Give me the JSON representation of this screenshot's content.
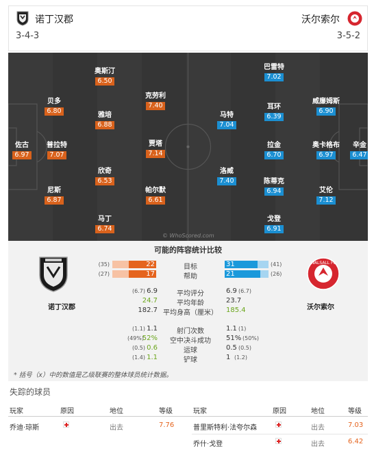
{
  "home": {
    "name": "诺丁汉郡",
    "formation": "3-4-3",
    "color": "#d9621c",
    "logo_text": "NOTTS COUNTY FC"
  },
  "away": {
    "name": "沃尔索尔",
    "formation": "3-5-2",
    "color": "#1b8fd2",
    "logo_text": "WALSALL FC"
  },
  "home_players": [
    {
      "name": "佐古",
      "rating": "6.97"
    },
    {
      "name": "普拉特",
      "rating": "7.07"
    },
    {
      "name": "贝多",
      "rating": "6.80"
    },
    {
      "name": "尼斯",
      "rating": "6.87"
    },
    {
      "name": "奥斯汀",
      "rating": "6.50"
    },
    {
      "name": "雅培",
      "rating": "6.88"
    },
    {
      "name": "欣奇",
      "rating": "6.53"
    },
    {
      "name": "马丁",
      "rating": "6.74"
    },
    {
      "name": "克劳利",
      "rating": "7.40"
    },
    {
      "name": "贾塔",
      "rating": "7.14"
    },
    {
      "name": "帕尔默",
      "rating": "6.61"
    }
  ],
  "away_players": [
    {
      "name": "辛金",
      "rating": "6.47"
    },
    {
      "name": "威廉姆斯",
      "rating": "6.90"
    },
    {
      "name": "奥卡格布",
      "rating": "6.97"
    },
    {
      "name": "艾伦",
      "rating": "7.12"
    },
    {
      "name": "巴雷特",
      "rating": "7.02"
    },
    {
      "name": "耳环",
      "rating": "6.39"
    },
    {
      "name": "拉金",
      "rating": "6.70"
    },
    {
      "name": "陈蒂克",
      "rating": "6.94"
    },
    {
      "name": "戈登",
      "rating": "6.91"
    },
    {
      "name": "马特",
      "rating": "7.04"
    },
    {
      "name": "洛威",
      "rating": "7.40"
    }
  ],
  "watermark": "© WhoScored.com",
  "stats": {
    "title": "可能的阵容统计比较",
    "goals": {
      "label": "目标",
      "home": "22",
      "home_prev": "(35)",
      "away": "31",
      "away_prev": "(41)"
    },
    "assists": {
      "label": "帮助",
      "home": "17",
      "home_prev": "(27)",
      "away": "21",
      "away_prev": "(26)"
    },
    "rating": {
      "label": "平均评分",
      "home": "6.9",
      "home_prev": "(6.7)",
      "away": "6.9",
      "away_prev": "(6.7)"
    },
    "age": {
      "label": "平均年龄",
      "home": "24.7",
      "away": "23.7"
    },
    "height": {
      "label": "平均身高（厘米）",
      "home": "182.7",
      "away": "185.4"
    },
    "shots": {
      "label": "射门次数",
      "home": "1.1",
      "home_prev": "(1.1)",
      "away": "1.1",
      "away_prev": "(1)"
    },
    "aerial": {
      "label": "空中决斗成功",
      "home": "52%",
      "home_prev": "(49%)",
      "away": "51%",
      "away_prev": "(50%)"
    },
    "dribbles": {
      "label": "运球",
      "home": "0.6",
      "home_prev": "(0.5)",
      "away": "0.5",
      "away_prev": "(0.5)"
    },
    "tackles": {
      "label": "铲球",
      "home": "1.1",
      "home_prev": "(1.4)",
      "away": "1",
      "away_prev": "(1.2)"
    },
    "bar_levels": {
      "goals_home": 0.63,
      "goals_home_prev": 1.0,
      "goals_away": 0.76,
      "goals_away_prev": 1.0,
      "assists_home": 0.63,
      "assists_home_prev": 1.0,
      "assists_away": 0.81,
      "assists_away_prev": 1.0
    },
    "footnote": "* 括号（x）中的数值是乙级联赛的整体球员统计数据。"
  },
  "missing": {
    "title": "失踪的球员",
    "headers": {
      "player": "玩家",
      "reason": "原因",
      "status": "地位",
      "rating": "等级"
    },
    "home_rows": [
      {
        "player": "乔迪·琼斯",
        "status": "出去",
        "rating": "7.76"
      }
    ],
    "away_rows": [
      {
        "player": "普里斯特利·法夸尔森",
        "status": "出去",
        "rating": "7.03"
      },
      {
        "player": "乔什·戈登",
        "status": "出去",
        "rating": "6.42"
      }
    ]
  }
}
